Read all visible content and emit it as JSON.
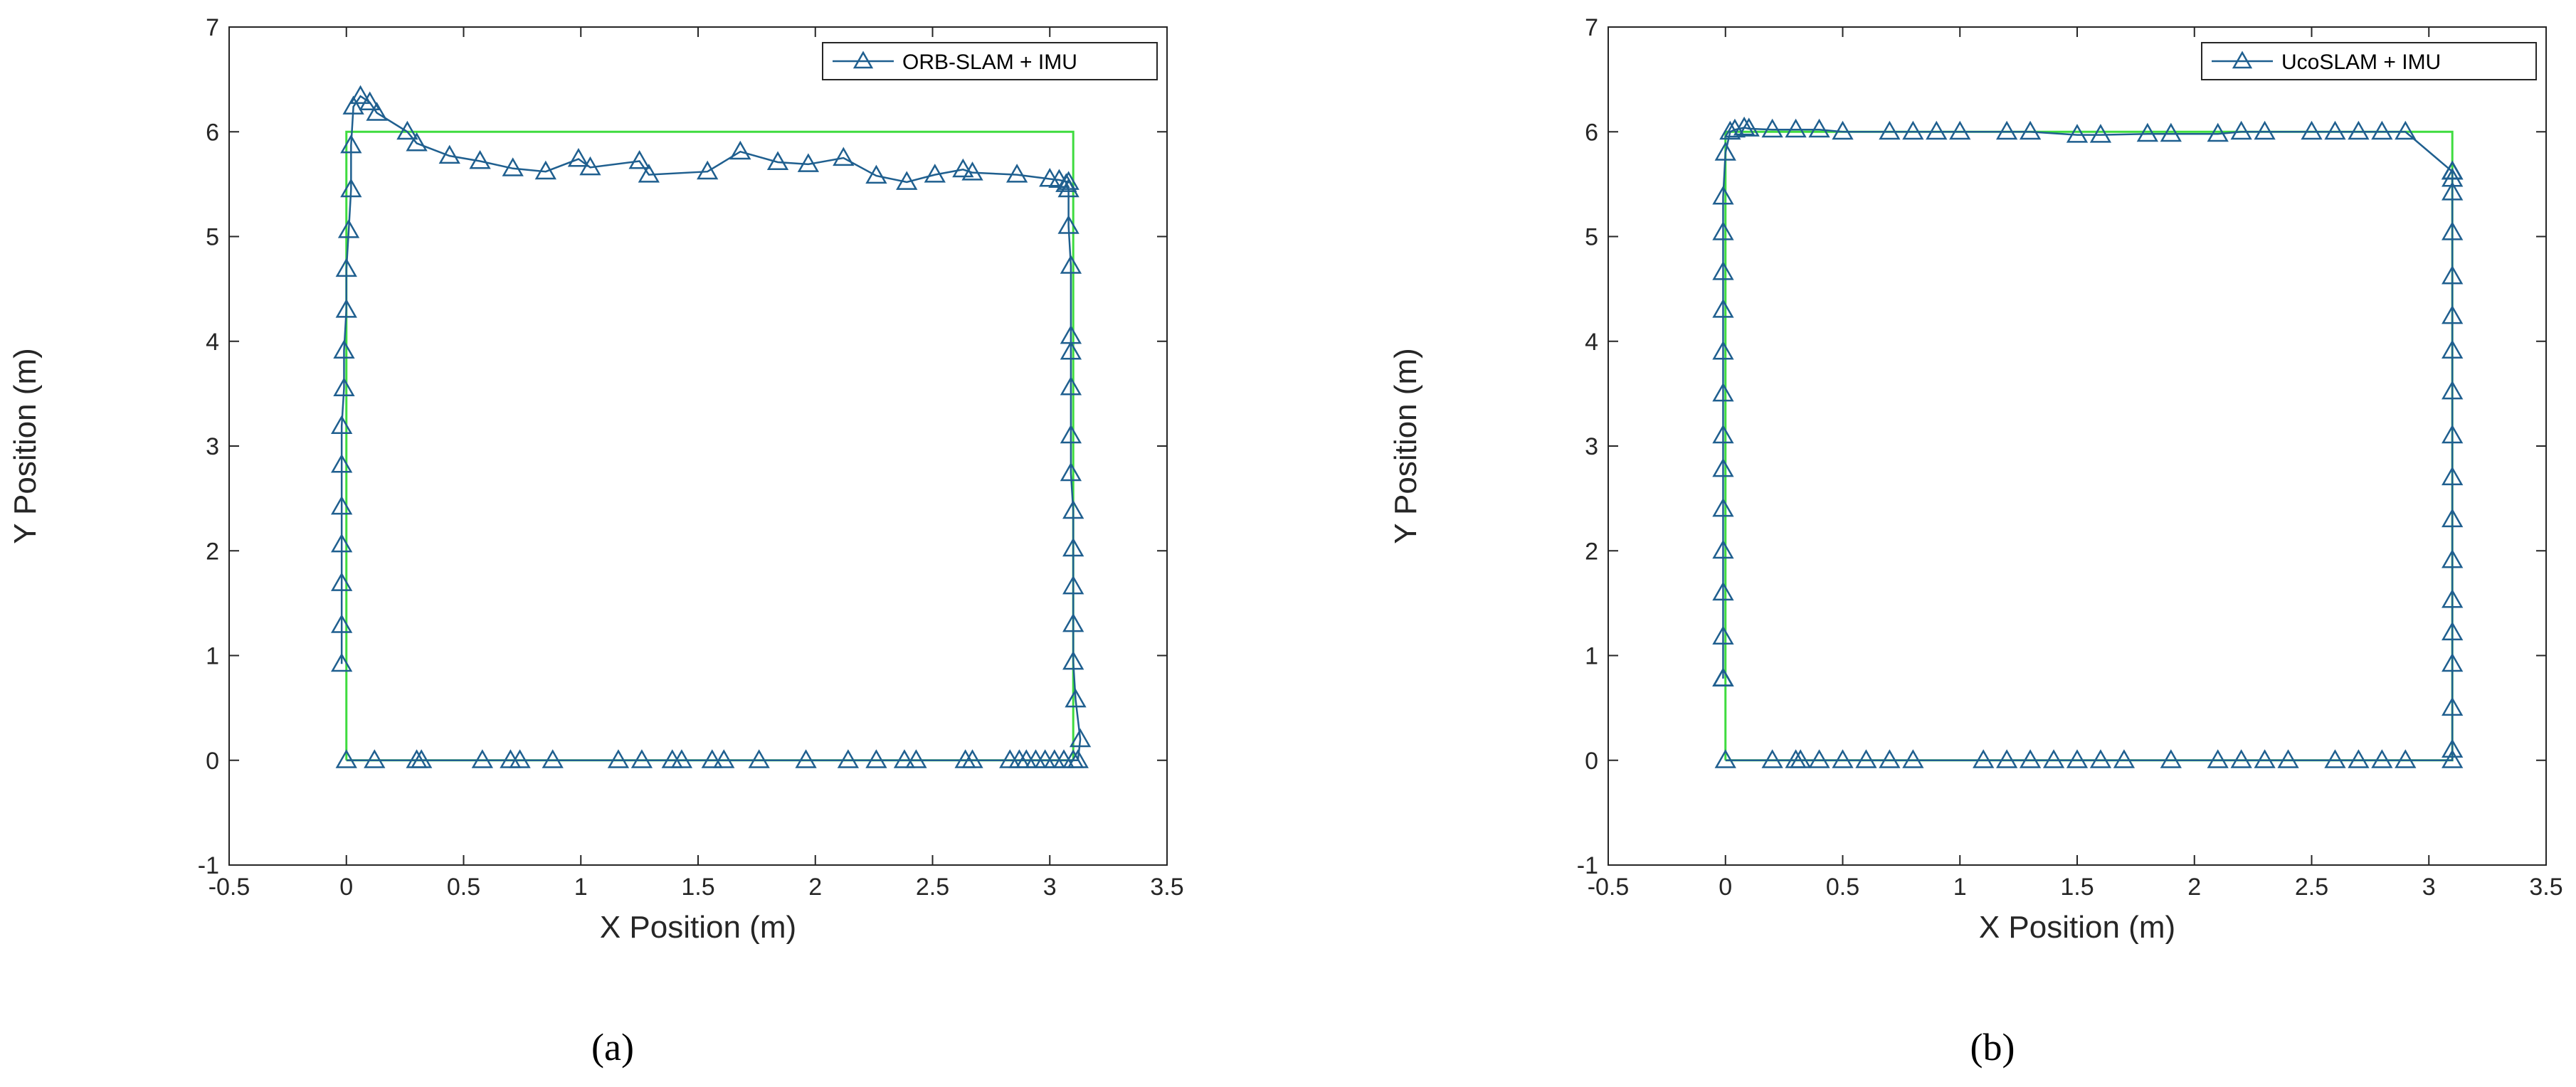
{
  "colors": {
    "estimate": "#1f5f8f",
    "ground_truth": "#3fdc3f",
    "axis": "#262626"
  },
  "chart_data": [
    {
      "type": "line",
      "caption": "(a)",
      "xlabel": "X Position (m)",
      "ylabel": "Y Position (m)",
      "xlim": [
        -0.5,
        3.5
      ],
      "ylim": [
        -1,
        7
      ],
      "xticks": [
        -0.5,
        0,
        0.5,
        1,
        1.5,
        2,
        2.5,
        3,
        3.5
      ],
      "xtick_labels": [
        "-0.5",
        "0",
        "0.5",
        "1",
        "1.5",
        "2",
        "2.5",
        "3",
        "3.5"
      ],
      "yticks": [
        -1,
        0,
        1,
        2,
        3,
        4,
        5,
        6,
        7
      ],
      "ytick_labels": [
        "-1",
        "0",
        "1",
        "2",
        "3",
        "4",
        "5",
        "6",
        "7"
      ],
      "grid": false,
      "legend_position": "top-right",
      "ground_truth": {
        "x": [
          0,
          3.1,
          3.1,
          0,
          0
        ],
        "y": [
          0,
          0,
          6,
          6,
          0
        ]
      },
      "series": [
        {
          "name": "ORB-SLAM + IMU",
          "marker": "triangle",
          "x": [
            0,
            0.12,
            0.3,
            0.32,
            0.58,
            0.7,
            0.74,
            0.88,
            1.16,
            1.26,
            1.39,
            1.43,
            1.56,
            1.61,
            1.76,
            1.96,
            2.14,
            2.26,
            2.38,
            2.43,
            2.64,
            2.67,
            2.83,
            2.87,
            2.9,
            2.94,
            2.98,
            3.02,
            3.06,
            3.1,
            3.12,
            3.13,
            3.11,
            3.1,
            3.1,
            3.1,
            3.1,
            3.1,
            3.09,
            3.09,
            3.09,
            3.09,
            3.09,
            3.09,
            3.08,
            3.08,
            3.07,
            3.08,
            3.04,
            3.0,
            2.86,
            2.67,
            2.63,
            2.51,
            2.39,
            2.26,
            2.12,
            1.97,
            1.84,
            1.68,
            1.54,
            1.29,
            1.25,
            1.04,
            0.99,
            0.85,
            0.71,
            0.57,
            0.44,
            0.3,
            0.26,
            0.13,
            0.1,
            0.06,
            0.03,
            0.02,
            0.02,
            0.01,
            0.0,
            0.0,
            -0.01,
            -0.01,
            -0.02,
            -0.02,
            -0.02,
            -0.02,
            -0.02,
            -0.02,
            -0.02
          ],
          "y": [
            0,
            0,
            0,
            0,
            0,
            0,
            0,
            0,
            0,
            0,
            0,
            0,
            0,
            0,
            0,
            0,
            0,
            0,
            0,
            0,
            0,
            0,
            0,
            0,
            0,
            0,
            0,
            0,
            0,
            0,
            0,
            0.2,
            0.58,
            0.94,
            1.3,
            1.66,
            2.02,
            2.38,
            2.74,
            3.1,
            3.56,
            3.9,
            4.05,
            4.72,
            5.1,
            5.45,
            5.5,
            5.52,
            5.54,
            5.55,
            5.59,
            5.61,
            5.64,
            5.59,
            5.52,
            5.58,
            5.75,
            5.69,
            5.71,
            5.81,
            5.62,
            5.59,
            5.72,
            5.66,
            5.74,
            5.62,
            5.65,
            5.72,
            5.77,
            5.89,
            6.0,
            6.18,
            6.28,
            6.34,
            6.24,
            5.87,
            5.45,
            5.06,
            4.69,
            4.3,
            3.91,
            3.55,
            3.19,
            2.82,
            2.42,
            2.06,
            1.69,
            1.29,
            0.92
          ]
        }
      ]
    },
    {
      "type": "line",
      "caption": "(b)",
      "xlabel": "X Position (m)",
      "ylabel": "Y Position (m)",
      "xlim": [
        -0.5,
        3.5
      ],
      "ylim": [
        -1,
        7
      ],
      "xticks": [
        -0.5,
        0,
        0.5,
        1,
        1.5,
        2,
        2.5,
        3,
        3.5
      ],
      "xtick_labels": [
        "-0.5",
        "0",
        "0.5",
        "1",
        "1.5",
        "2",
        "2.5",
        "3",
        "3.5"
      ],
      "yticks": [
        -1,
        0,
        1,
        2,
        3,
        4,
        5,
        6,
        7
      ],
      "ytick_labels": [
        "-1",
        "0",
        "1",
        "2",
        "3",
        "4",
        "5",
        "6",
        "7"
      ],
      "grid": false,
      "legend_position": "top-right",
      "ground_truth": {
        "x": [
          0,
          3.1,
          3.1,
          0,
          0
        ],
        "y": [
          0,
          0,
          6,
          6,
          0
        ]
      },
      "series": [
        {
          "name": "UcoSLAM + IMU",
          "marker": "triangle",
          "x": [
            0,
            0.2,
            0.3,
            0.32,
            0.4,
            0.5,
            0.6,
            0.7,
            0.8,
            1.1,
            1.2,
            1.3,
            1.4,
            1.5,
            1.6,
            1.7,
            1.9,
            2.1,
            2.2,
            2.3,
            2.4,
            2.6,
            2.7,
            2.8,
            2.9,
            3.1,
            3.1,
            3.1,
            3.1,
            3.1,
            3.1,
            3.1,
            3.1,
            3.1,
            3.1,
            3.1,
            3.1,
            3.1,
            3.1,
            3.1,
            3.1,
            3.1,
            3.1,
            3.1,
            3.1,
            3.1,
            3.1,
            2.9,
            2.8,
            2.7,
            2.6,
            2.5,
            2.3,
            2.2,
            2.1,
            1.9,
            1.8,
            1.6,
            1.5,
            1.3,
            1.2,
            1.0,
            0.9,
            0.8,
            0.7,
            0.5,
            0.4,
            0.3,
            0.2,
            0.1,
            0.08,
            0.04,
            0.02,
            0.0,
            -0.01,
            -0.01,
            -0.01,
            -0.01,
            -0.01,
            -0.01,
            -0.01,
            -0.01,
            -0.01,
            -0.01,
            -0.01,
            -0.01,
            -0.01,
            -0.01,
            -0.01
          ],
          "y": [
            0,
            0,
            0,
            0,
            0,
            0,
            0,
            0,
            0,
            0,
            0,
            0,
            0,
            0,
            0,
            0,
            0,
            0,
            0,
            0,
            0,
            0,
            0,
            0,
            0,
            0,
            0.1,
            0.5,
            0.92,
            1.22,
            1.53,
            1.91,
            2.3,
            2.7,
            3.1,
            3.52,
            3.91,
            4.24,
            4.62,
            5.04,
            5.42,
            5.55,
            5.62,
            5.62,
            5.62,
            5.62,
            5.62,
            6.0,
            6.0,
            6.0,
            6.0,
            6.0,
            6.0,
            6.0,
            5.98,
            5.98,
            5.98,
            5.97,
            5.97,
            6.0,
            6.0,
            6.0,
            6.0,
            6.0,
            6.0,
            6.0,
            6.02,
            6.02,
            6.02,
            6.03,
            6.04,
            6.02,
            6.0,
            5.8,
            5.38,
            5.04,
            4.66,
            4.3,
            3.9,
            3.5,
            3.1,
            2.78,
            2.4,
            2.0,
            1.6,
            1.18,
            0.78,
            0.78,
            0.78
          ]
        }
      ]
    }
  ]
}
